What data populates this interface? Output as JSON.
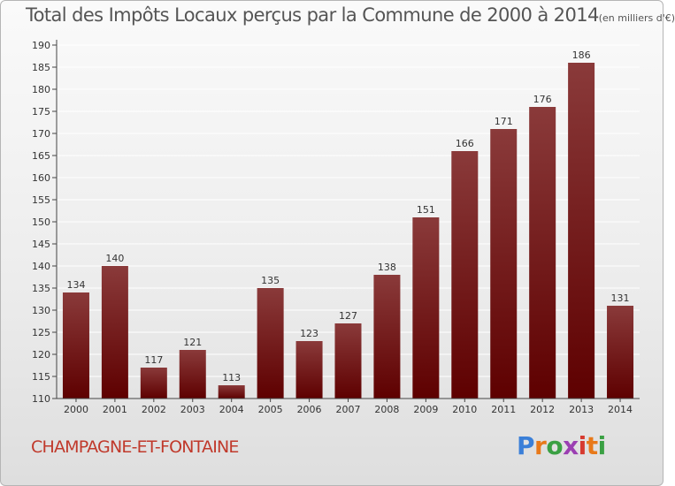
{
  "title_main": "Total des Impôts Locaux perçus par la Commune de 2000 à 2014",
  "title_unit": "(en milliers d'€)",
  "commune_name": "CHAMPAGNE-ET-FONTAINE",
  "brand": {
    "letters": [
      "P",
      "r",
      "o",
      "x",
      "i",
      "t",
      "i"
    ]
  },
  "colors": {
    "bar_top": "#8a3a3a",
    "bar_bottom": "#5e0000",
    "axis": "#444444",
    "grid": "#ffffff",
    "label": "#333333"
  },
  "chart_data": {
    "type": "bar",
    "title": "Total des Impôts Locaux perçus par la Commune de 2000 à 2014 (en milliers d'€)",
    "xlabel": "",
    "ylabel": "",
    "categories": [
      "2000",
      "2001",
      "2002",
      "2003",
      "2004",
      "2005",
      "2006",
      "2007",
      "2008",
      "2009",
      "2010",
      "2011",
      "2012",
      "2013",
      "2014"
    ],
    "values": [
      134,
      140,
      117,
      121,
      113,
      135,
      123,
      127,
      138,
      151,
      166,
      171,
      176,
      186,
      131
    ],
    "ylim": [
      110,
      190
    ],
    "yticks": [
      110,
      115,
      120,
      125,
      130,
      135,
      140,
      145,
      150,
      155,
      160,
      165,
      170,
      175,
      180,
      185,
      190
    ],
    "grid": true,
    "legend": "none"
  }
}
